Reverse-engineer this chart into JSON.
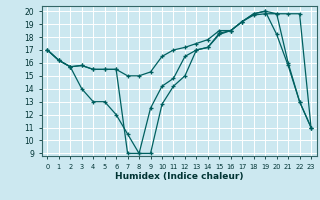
{
  "xlabel": "Humidex (Indice chaleur)",
  "bg_color": "#cce8f0",
  "grid_color": "#ffffff",
  "line_color": "#006060",
  "xmin": -0.5,
  "xmax": 23.5,
  "ymin": 8.8,
  "ymax": 20.4,
  "xticks": [
    0,
    1,
    2,
    3,
    4,
    5,
    6,
    7,
    8,
    9,
    10,
    11,
    12,
    13,
    14,
    15,
    16,
    17,
    18,
    19,
    20,
    21,
    22,
    23
  ],
  "yticks": [
    9,
    10,
    11,
    12,
    13,
    14,
    15,
    16,
    17,
    18,
    19,
    20
  ],
  "line1_x": [
    0,
    1,
    2,
    3,
    4,
    5,
    6,
    7,
    8,
    9,
    10,
    11,
    12,
    13,
    14,
    15,
    16,
    17,
    18,
    19,
    20,
    21,
    22,
    23
  ],
  "line1_y": [
    17,
    16.2,
    15.7,
    15.8,
    15.5,
    15.5,
    15.5,
    15.0,
    15.0,
    15.3,
    16.5,
    17.0,
    17.2,
    17.5,
    17.8,
    18.5,
    18.5,
    19.2,
    19.7,
    19.8,
    19.8,
    19.8,
    19.8,
    11.0
  ],
  "line2_x": [
    0,
    1,
    2,
    3,
    4,
    5,
    6,
    7,
    8,
    9,
    10,
    11,
    12,
    13,
    14,
    15,
    16,
    17,
    18,
    19,
    20,
    21,
    22,
    23
  ],
  "line2_y": [
    17,
    16.2,
    15.7,
    14.0,
    13.0,
    13.0,
    12.0,
    10.5,
    9.0,
    9.0,
    12.8,
    14.2,
    15.0,
    17.0,
    17.2,
    18.3,
    18.5,
    19.2,
    19.8,
    20.0,
    19.8,
    16.0,
    13.0,
    11.0
  ],
  "line3_x": [
    0,
    1,
    2,
    3,
    4,
    5,
    6,
    7,
    8,
    9,
    10,
    11,
    12,
    13,
    14,
    15,
    16,
    17,
    18,
    19,
    20,
    21,
    22,
    23
  ],
  "line3_y": [
    17,
    16.2,
    15.7,
    15.8,
    15.5,
    15.5,
    15.5,
    9.0,
    9.0,
    12.5,
    14.2,
    14.8,
    16.5,
    17.0,
    17.2,
    18.2,
    18.5,
    19.2,
    19.8,
    20.0,
    18.2,
    15.8,
    13.0,
    11.0
  ]
}
